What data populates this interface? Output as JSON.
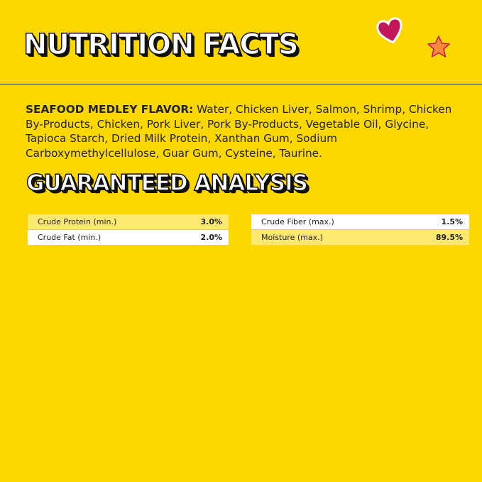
{
  "header": {
    "title": "NUTRITION FACTS"
  },
  "ingredients": {
    "label": "SEAFOOD MEDLEY FLAVOR:",
    "text": "Water, Chicken Liver, Salmon, Shrimp, Chicken By-Products, Chicken, Pork Liver, Pork By-Products, Vegetable Oil, Glycine, Tapioca Starch, Dried Milk Protein, Xanthan Gum, Sodium  Carboxymethylcellulose, Guar Gum, Cysteine, Taurine."
  },
  "analysis": {
    "title": "GUARANTEED ANALYSIS",
    "left": {
      "rows": [
        [
          "Crude Protein (min.)",
          "3.0%"
        ],
        [
          "Crude Fat (min.)",
          "2.0%"
        ]
      ]
    },
    "right": {
      "rows": [
        [
          "Crude Fiber (max.)",
          "1.5%"
        ],
        [
          "Moisture (max.)",
          "89.5%"
        ]
      ]
    }
  }
}
